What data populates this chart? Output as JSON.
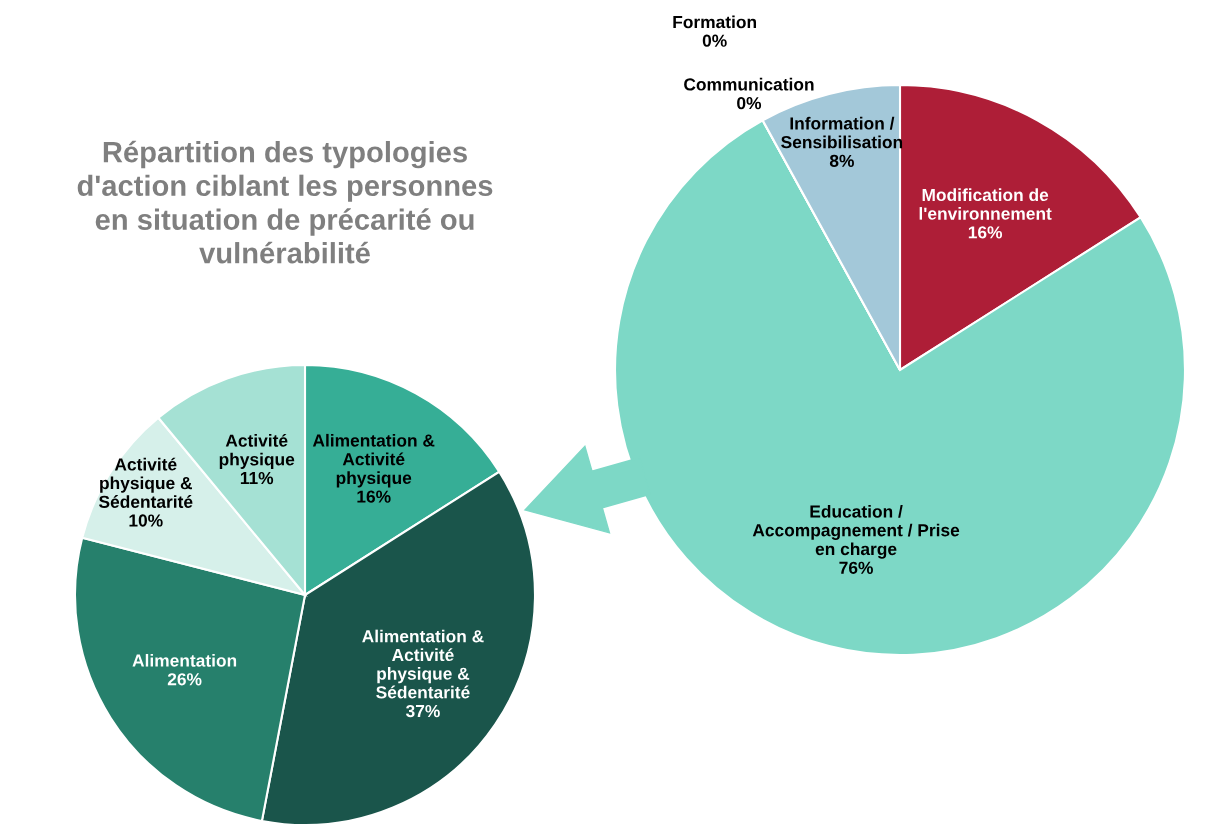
{
  "chart_data": [
    {
      "type": "pie",
      "title": "Répartition des typologies\nd'action ciblant les personnes\nen situation de précarité ou\nvulnérabilité",
      "categories": [
        "Modification de\nl'environnement",
        "Education /\nAccompagnement / Prise\nen charge",
        "Communication",
        "Formation",
        "Information /\nSensibilisation"
      ],
      "values": [
        16,
        76,
        0,
        0,
        8
      ],
      "value_labels": [
        "16%",
        "76%",
        "0%",
        "0%",
        "8%"
      ],
      "colors": [
        "#ae1e37",
        "#7dd8c6",
        "#5b9bd5",
        "#ed7d31",
        "#a3c8d9"
      ]
    },
    {
      "type": "pie",
      "categories": [
        "Alimentation &\nActivité\nphysique",
        "Alimentation &\nActivité\nphysique &\nSédentarité",
        "Alimentation",
        "Activité\nphysique &\nSédentarité",
        "Activité\nphysique"
      ],
      "values": [
        16,
        37,
        26,
        10,
        11
      ],
      "value_labels": [
        "16%",
        "37%",
        "26%",
        "10%",
        "11%"
      ],
      "colors": [
        "#36ae96",
        "#1a554b",
        "#26806c",
        "#d6f0ea",
        "#a5e1d4"
      ]
    }
  ]
}
